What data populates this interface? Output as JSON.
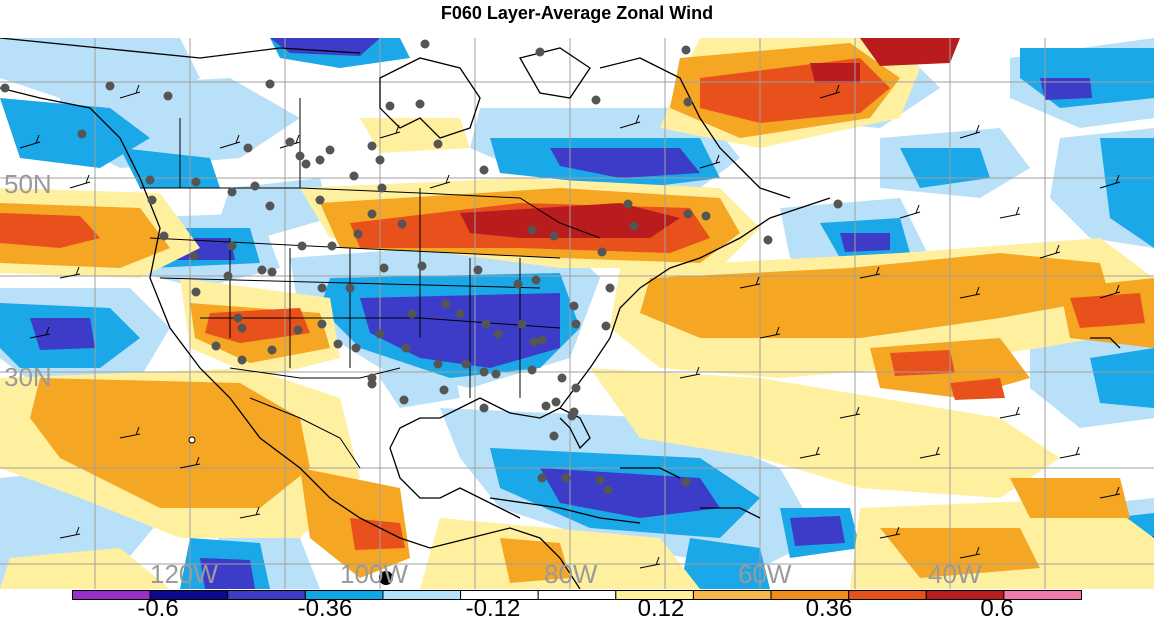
{
  "title": "F060 Layer-Average Zonal Wind",
  "lat_labels": [
    "50N",
    "30N"
  ],
  "lon_labels": [
    "120W",
    "100W",
    "80W",
    "60W",
    "40W"
  ],
  "colorbar": {
    "labels": [
      "-0.6",
      "-0.36",
      "-0.12",
      "0.12",
      "0.36",
      "0.6"
    ],
    "colors": [
      "#9b30c8",
      "#0a0a8f",
      "#3c3cc8",
      "#0fa8e6",
      "#b4e0f8",
      "#ffffff",
      "#ffffff",
      "#fff09a",
      "#f5b84a",
      "#f08c1c",
      "#e8501c",
      "#b81c1c",
      "#f07aa8"
    ]
  },
  "palette": {
    "dark_blue": "#2a2ab8",
    "mid_blue": "#3c50d2",
    "cyan": "#1aa8e8",
    "light_blue": "#b8e0f8",
    "light_yellow": "#fff0a0",
    "orange": "#f5a623",
    "red_orange": "#e8501c",
    "dark_red": "#b81c1c",
    "coast": "#000000",
    "grid": "#a0a0a0",
    "station": "#555555"
  }
}
